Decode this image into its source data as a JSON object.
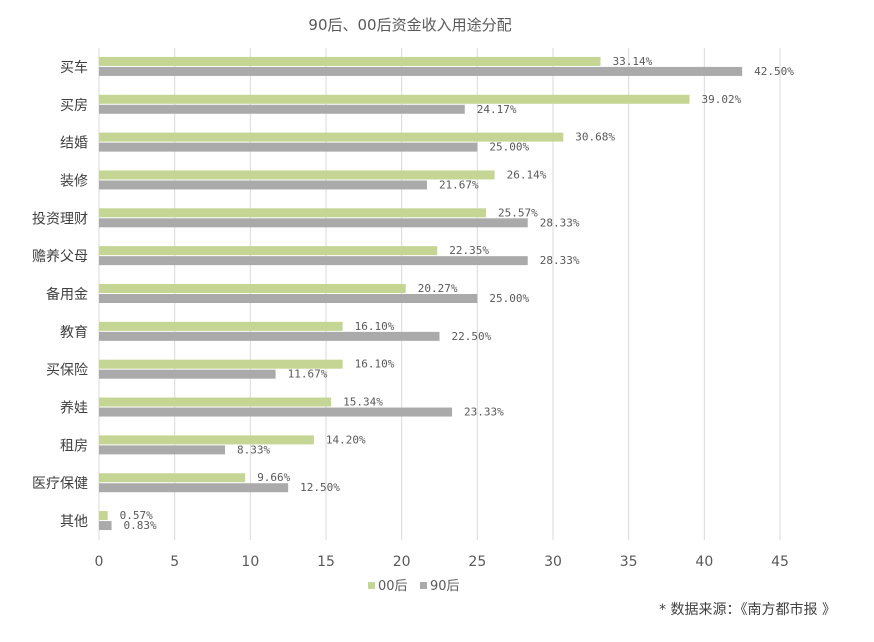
{
  "chart_data": {
    "type": "bar",
    "orientation": "horizontal",
    "title": "90后、00后资金收入用途分配",
    "categories": [
      "买车",
      "买房",
      "结婚",
      "装修",
      "投资理财",
      "赡养父母",
      "备用金",
      "教育",
      "买保险",
      "养娃",
      "租房",
      "医疗保健",
      "其他"
    ],
    "series": [
      {
        "name": "00后",
        "color": "#c5d593",
        "values": [
          33.14,
          39.02,
          30.68,
          26.14,
          25.57,
          22.35,
          20.27,
          16.1,
          16.1,
          15.34,
          14.2,
          9.66,
          0.57
        ],
        "labels": [
          "33.14%",
          "39.02%",
          "30.68%",
          "26.14%",
          "25.57%",
          "22.35%",
          "20.27%",
          "16.10%",
          "16.10%",
          "15.34%",
          "14.20%",
          "9.66%",
          "0.57%"
        ]
      },
      {
        "name": "90后",
        "color": "#aaaaaa",
        "values": [
          42.5,
          24.17,
          25.0,
          21.67,
          28.33,
          28.33,
          25.0,
          22.5,
          11.67,
          23.33,
          8.33,
          12.5,
          0.83
        ],
        "labels": [
          "42.50%",
          "24.17%",
          "25.00%",
          "21.67%",
          "28.33%",
          "28.33%",
          "25.00%",
          "22.50%",
          "11.67%",
          "23.33%",
          "8.33%",
          "12.50%",
          "0.83%"
        ]
      }
    ],
    "xlim": [
      0,
      45
    ],
    "xticks": [
      "0",
      "5",
      "10",
      "15",
      "20",
      "25",
      "30",
      "35",
      "40",
      "45"
    ],
    "grid": true,
    "legend_position": "bottom"
  },
  "source_note": "* 数据来源：《南方都市报 》"
}
